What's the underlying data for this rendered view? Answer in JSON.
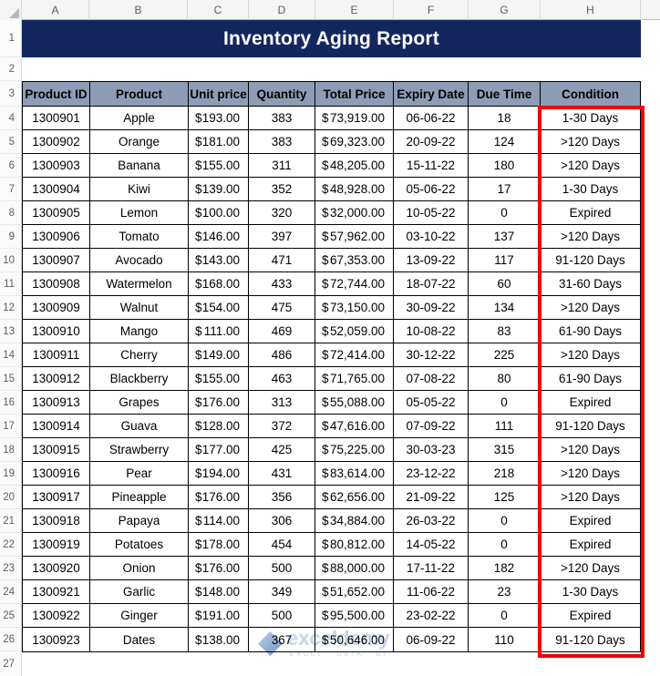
{
  "title": "Inventory Aging Report",
  "sheet": {
    "column_letters": [
      "A",
      "B",
      "C",
      "D",
      "E",
      "F",
      "G",
      "H"
    ],
    "row_numbers": [
      "1",
      "2",
      "3",
      "4",
      "5",
      "6",
      "7",
      "8",
      "9",
      "10",
      "11",
      "12",
      "13",
      "14",
      "15",
      "16",
      "17",
      "18",
      "19",
      "20",
      "21",
      "22",
      "23",
      "24",
      "25",
      "26",
      "27"
    ]
  },
  "table": {
    "currency": "$",
    "headers": [
      "Product ID",
      "Product",
      "Unit price",
      "Quantity",
      "Total Price",
      "Expiry Date",
      "Due Time",
      "Condition"
    ],
    "rows": [
      {
        "id": "1300901",
        "product": "Apple",
        "unit_price": "193.00",
        "quantity": "383",
        "total_price": "73,919.00",
        "expiry": "06-06-22",
        "due": "18",
        "condition": "1-30 Days"
      },
      {
        "id": "1300902",
        "product": "Orange",
        "unit_price": "181.00",
        "quantity": "383",
        "total_price": "69,323.00",
        "expiry": "20-09-22",
        "due": "124",
        "condition": ">120 Days"
      },
      {
        "id": "1300903",
        "product": "Banana",
        "unit_price": "155.00",
        "quantity": "311",
        "total_price": "48,205.00",
        "expiry": "15-11-22",
        "due": "180",
        "condition": ">120 Days"
      },
      {
        "id": "1300904",
        "product": "Kiwi",
        "unit_price": "139.00",
        "quantity": "352",
        "total_price": "48,928.00",
        "expiry": "05-06-22",
        "due": "17",
        "condition": "1-30 Days"
      },
      {
        "id": "1300905",
        "product": "Lemon",
        "unit_price": "100.00",
        "quantity": "320",
        "total_price": "32,000.00",
        "expiry": "10-05-22",
        "due": "0",
        "condition": "Expired"
      },
      {
        "id": "1300906",
        "product": "Tomato",
        "unit_price": "146.00",
        "quantity": "397",
        "total_price": "57,962.00",
        "expiry": "03-10-22",
        "due": "137",
        "condition": ">120 Days"
      },
      {
        "id": "1300907",
        "product": "Avocado",
        "unit_price": "143.00",
        "quantity": "471",
        "total_price": "67,353.00",
        "expiry": "13-09-22",
        "due": "117",
        "condition": "91-120 Days"
      },
      {
        "id": "1300908",
        "product": "Watermelon",
        "unit_price": "168.00",
        "quantity": "433",
        "total_price": "72,744.00",
        "expiry": "18-07-22",
        "due": "60",
        "condition": "31-60 Days"
      },
      {
        "id": "1300909",
        "product": "Walnut",
        "unit_price": "154.00",
        "quantity": "475",
        "total_price": "73,150.00",
        "expiry": "30-09-22",
        "due": "134",
        "condition": ">120 Days"
      },
      {
        "id": "1300910",
        "product": "Mango",
        "unit_price": "111.00",
        "quantity": "469",
        "total_price": "52,059.00",
        "expiry": "10-08-22",
        "due": "83",
        "condition": "61-90 Days"
      },
      {
        "id": "1300911",
        "product": "Cherry",
        "unit_price": "149.00",
        "quantity": "486",
        "total_price": "72,414.00",
        "expiry": "30-12-22",
        "due": "225",
        "condition": ">120 Days"
      },
      {
        "id": "1300912",
        "product": "Blackberry",
        "unit_price": "155.00",
        "quantity": "463",
        "total_price": "71,765.00",
        "expiry": "07-08-22",
        "due": "80",
        "condition": "61-90 Days"
      },
      {
        "id": "1300913",
        "product": "Grapes",
        "unit_price": "176.00",
        "quantity": "313",
        "total_price": "55,088.00",
        "expiry": "05-05-22",
        "due": "0",
        "condition": "Expired"
      },
      {
        "id": "1300914",
        "product": "Guava",
        "unit_price": "128.00",
        "quantity": "372",
        "total_price": "47,616.00",
        "expiry": "07-09-22",
        "due": "111",
        "condition": "91-120 Days"
      },
      {
        "id": "1300915",
        "product": "Strawberry",
        "unit_price": "177.00",
        "quantity": "425",
        "total_price": "75,225.00",
        "expiry": "30-03-23",
        "due": "315",
        "condition": ">120 Days"
      },
      {
        "id": "1300916",
        "product": "Pear",
        "unit_price": "194.00",
        "quantity": "431",
        "total_price": "83,614.00",
        "expiry": "23-12-22",
        "due": "218",
        "condition": ">120 Days"
      },
      {
        "id": "1300917",
        "product": "Pineapple",
        "unit_price": "176.00",
        "quantity": "356",
        "total_price": "62,656.00",
        "expiry": "21-09-22",
        "due": "125",
        "condition": ">120 Days"
      },
      {
        "id": "1300918",
        "product": "Papaya",
        "unit_price": "114.00",
        "quantity": "306",
        "total_price": "34,884.00",
        "expiry": "26-03-22",
        "due": "0",
        "condition": "Expired"
      },
      {
        "id": "1300919",
        "product": "Potatoes",
        "unit_price": "178.00",
        "quantity": "454",
        "total_price": "80,812.00",
        "expiry": "14-05-22",
        "due": "0",
        "condition": "Expired"
      },
      {
        "id": "1300920",
        "product": "Onion",
        "unit_price": "176.00",
        "quantity": "500",
        "total_price": "88,000.00",
        "expiry": "17-11-22",
        "due": "182",
        "condition": ">120 Days"
      },
      {
        "id": "1300921",
        "product": "Garlic",
        "unit_price": "148.00",
        "quantity": "349",
        "total_price": "51,652.00",
        "expiry": "11-06-22",
        "due": "23",
        "condition": "1-30 Days"
      },
      {
        "id": "1300922",
        "product": "Ginger",
        "unit_price": "191.00",
        "quantity": "500",
        "total_price": "95,500.00",
        "expiry": "23-02-22",
        "due": "0",
        "condition": "Expired"
      },
      {
        "id": "1300923",
        "product": "Dates",
        "unit_price": "138.00",
        "quantity": "367",
        "total_price": "50,646.00",
        "expiry": "06-09-22",
        "due": "110",
        "condition": "91-120 Days"
      }
    ]
  },
  "watermark": {
    "name": "exceldemy",
    "tagline": "EXCEL - DATA - BI"
  },
  "colors": {
    "title_bg": "#13275e",
    "header_bg": "#8d9db7",
    "highlight_border": "#ee0202"
  }
}
